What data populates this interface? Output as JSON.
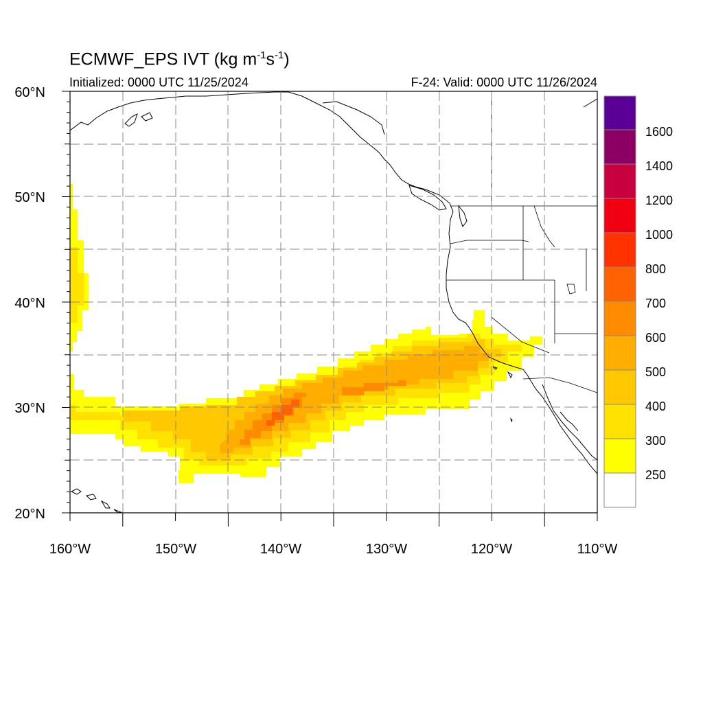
{
  "header": {
    "title_main": "ECMWF_EPS IVT (kg m",
    "title_exp1": "-1",
    "title_mid": "s",
    "title_exp2": "-1",
    "title_end": ")",
    "initialized": "Initialized: 0000 UTC 11/25/2024",
    "valid": "F-24: Valid: 0000 UTC 11/26/2024"
  },
  "map": {
    "lon_range": [
      -160,
      -110
    ],
    "lat_range": [
      20,
      60
    ],
    "lon_tick_labels": [
      "160°W",
      "150°W",
      "140°W",
      "130°W",
      "120°W",
      "110°W"
    ],
    "lat_tick_labels": [
      "20°N",
      "30°N",
      "40°N",
      "50°N",
      "60°N"
    ],
    "grid": "dashed every 5 degrees",
    "colors": {
      "250": "#ffff00",
      "300": "#ffe200",
      "400": "#ffc800",
      "500": "#ffae00",
      "600": "#ff8c00",
      "700": "#ff6200",
      "800": "#ff3200",
      "1000": "#f00010",
      "1200": "#c80040",
      "1400": "#8c0064",
      "1600": "#5a0096"
    }
  },
  "colorbar": {
    "labels": [
      "250",
      "300",
      "400",
      "500",
      "600",
      "700",
      "800",
      "1000",
      "1200",
      "1400",
      "1600"
    ]
  }
}
